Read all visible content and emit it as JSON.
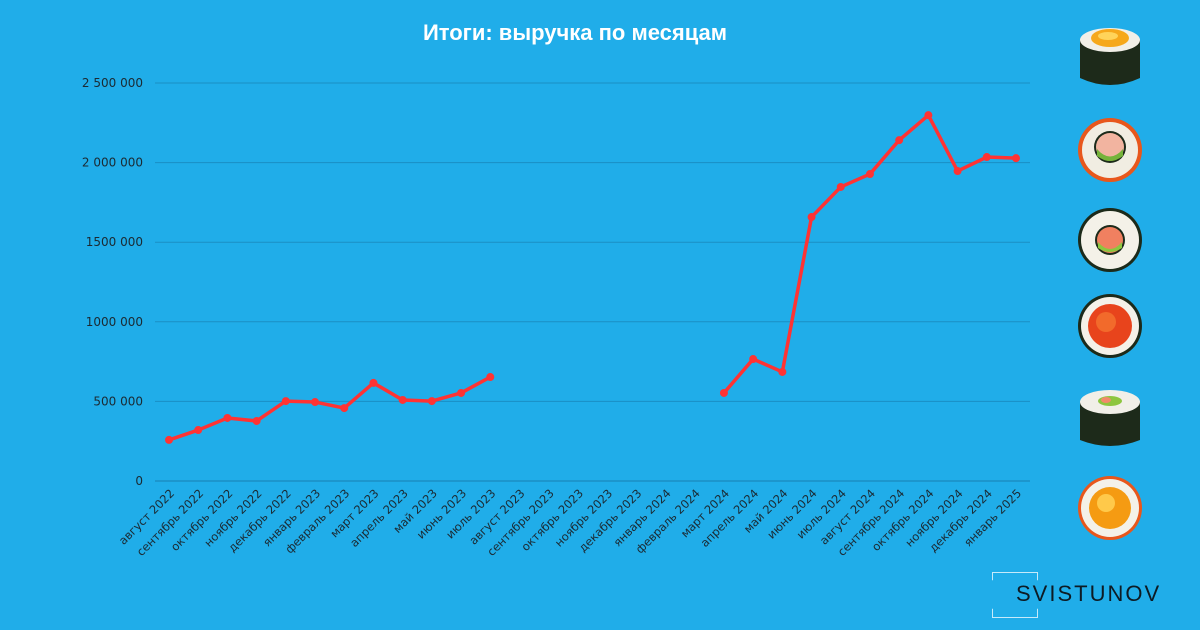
{
  "chart_data": {
    "type": "line",
    "title": "Итоги: выручка по месяцам",
    "xlabel": "",
    "ylabel": "",
    "ylim": [
      0,
      2500000
    ],
    "yticks": [
      0,
      500000,
      1000000,
      1500000,
      2000000,
      2500000
    ],
    "ytick_labels": [
      "0",
      "500 000",
      "1000 000",
      "1500 000",
      "2 000 000",
      "2 500 000"
    ],
    "grid": true,
    "categories": [
      "август 2022",
      "сентябрь 2022",
      "октябрь 2022",
      "ноябрь 2022",
      "декабрь 2022",
      "январь 2023",
      "февраль 2023",
      "март 2023",
      "апрель 2023",
      "май 2023",
      "июнь 2023",
      "июль 2023",
      "август 2023",
      "сентябрь 2023",
      "октябрь 2023",
      "ноябрь 2023",
      "декабрь 2023",
      "январь 2024",
      "февраль 2024",
      "март 2024",
      "апрель 2024",
      "май 2024",
      "июнь 2024",
      "июль 2024",
      "август 2024",
      "сентябрь 2024",
      "октябрь 2024",
      "ноябрь 2024",
      "декабрь 2024",
      "январь 2025"
    ],
    "values": [
      258000,
      320000,
      396000,
      377000,
      502000,
      496000,
      458000,
      616000,
      509000,
      502000,
      553000,
      653000,
      null,
      null,
      null,
      null,
      null,
      null,
      null,
      553000,
      766000,
      685000,
      1658000,
      1847000,
      1928000,
      2141000,
      2298000,
      1947000,
      2035000,
      2028000
    ],
    "colors": {
      "line": "#FF3333",
      "background": "#20ADE9",
      "grid": "#1A8FC4"
    }
  },
  "logo": {
    "text": "SVISTUNOV"
  },
  "decorations": [
    "sushi-roll-egg-icon",
    "sushi-roll-salmon-avocado-icon",
    "sushi-roll-avocado-icon",
    "sushi-roll-caviar-icon",
    "sushi-roll-nori-icon",
    "sushi-roll-yolk-icon"
  ]
}
